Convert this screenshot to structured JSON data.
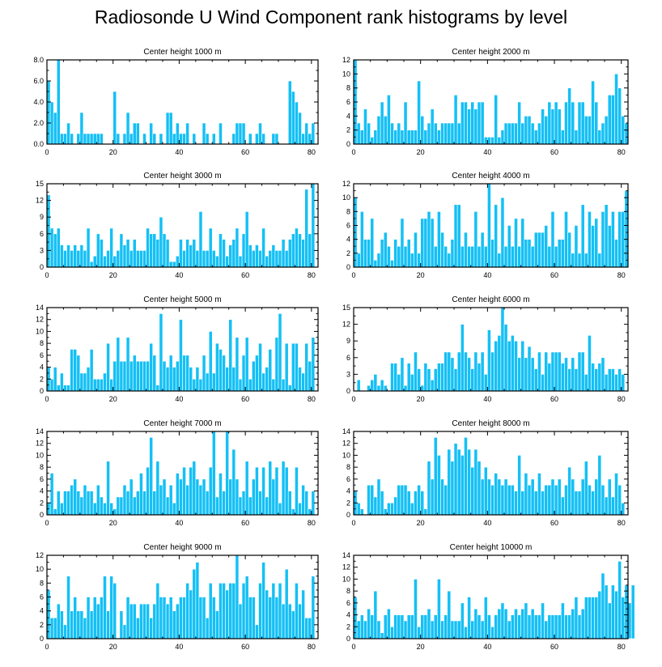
{
  "title": "Radiosonde U Wind Component rank histograms by level",
  "chart_data": [
    {
      "type": "bar",
      "title": "Center height 1000 m",
      "xlim": [
        0,
        82
      ],
      "ylim": [
        0,
        8
      ],
      "xticks": [
        0,
        20,
        40,
        60,
        80
      ],
      "yticks": [
        "0.0",
        "2.0",
        "4.0",
        "6.0",
        "8.0"
      ],
      "values": [
        6,
        4,
        3,
        8,
        1,
        1,
        2,
        1,
        0,
        1,
        3,
        1,
        1,
        1,
        1,
        1,
        1,
        0,
        0,
        0,
        5,
        1,
        0,
        1,
        3,
        1,
        2,
        2,
        0,
        1,
        0,
        2,
        1,
        0,
        1,
        0,
        3,
        3,
        1,
        2,
        1,
        1,
        2,
        0,
        1,
        0,
        0,
        2,
        1,
        0,
        1,
        0,
        2,
        0,
        0,
        0,
        1,
        2,
        2,
        2,
        0,
        1,
        0,
        1,
        2,
        1,
        0,
        0,
        1,
        1,
        0,
        0,
        0,
        6,
        5,
        4,
        3,
        1,
        2,
        1,
        2
      ]
    },
    {
      "type": "bar",
      "title": "Center height 2000 m",
      "xlim": [
        0,
        82
      ],
      "ylim": [
        0,
        12
      ],
      "xticks": [
        0,
        20,
        40,
        60,
        80
      ],
      "yticks": [
        "0",
        "2",
        "4",
        "6",
        "8",
        "10",
        "12"
      ],
      "values": [
        12,
        3,
        2,
        5,
        3,
        1,
        2,
        4,
        6,
        4,
        7,
        3,
        2,
        3,
        2,
        6,
        2,
        2,
        2,
        9,
        4,
        2,
        3,
        5,
        3,
        2,
        3,
        3,
        3,
        3,
        7,
        3,
        6,
        6,
        5,
        6,
        5,
        6,
        6,
        1,
        1,
        1,
        7,
        1,
        2,
        3,
        3,
        3,
        3,
        6,
        3,
        4,
        4,
        3,
        2,
        3,
        5,
        4,
        6,
        5,
        6,
        5,
        2,
        6,
        8,
        6,
        2,
        6,
        6,
        4,
        4,
        9,
        6,
        2,
        3,
        4,
        7,
        7,
        10,
        8,
        4,
        3
      ]
    },
    {
      "type": "bar",
      "title": "Center height 3000 m",
      "xlim": [
        0,
        82
      ],
      "ylim": [
        0,
        15
      ],
      "xticks": [
        0,
        20,
        40,
        60,
        80
      ],
      "yticks": [
        "0",
        "3",
        "6",
        "9",
        "12",
        "15"
      ],
      "values": [
        13,
        7,
        6,
        7,
        4,
        3,
        4,
        3,
        4,
        3,
        4,
        3,
        7,
        1,
        2,
        6,
        5,
        2,
        3,
        7,
        2,
        3,
        6,
        4,
        5,
        3,
        5,
        3,
        3,
        3,
        7,
        6,
        6,
        5,
        9,
        6,
        5,
        1,
        1,
        2,
        5,
        3,
        5,
        4,
        5,
        3,
        10,
        3,
        3,
        7,
        3,
        2,
        6,
        5,
        2,
        4,
        5,
        7,
        2,
        6,
        10,
        4,
        3,
        4,
        3,
        7,
        2,
        3,
        4,
        3,
        3,
        5,
        3,
        5,
        6,
        7,
        6,
        5,
        14,
        6,
        15
      ]
    },
    {
      "type": "bar",
      "title": "Center height 4000 m",
      "xlim": [
        0,
        82
      ],
      "ylim": [
        0,
        12
      ],
      "xticks": [
        0,
        20,
        40,
        60,
        80
      ],
      "yticks": [
        "0",
        "2",
        "4",
        "6",
        "8",
        "10",
        "12"
      ],
      "values": [
        10,
        2,
        8,
        4,
        4,
        7,
        1,
        2,
        4,
        5,
        3,
        1,
        4,
        3,
        7,
        3,
        4,
        2,
        5,
        2,
        7,
        7,
        8,
        7,
        3,
        8,
        5,
        3,
        2,
        4,
        9,
        9,
        3,
        5,
        3,
        3,
        8,
        3,
        5,
        3,
        12,
        4,
        9,
        2,
        10,
        3,
        6,
        3,
        7,
        3,
        7,
        4,
        4,
        3,
        5,
        5,
        5,
        6,
        3,
        8,
        3,
        4,
        4,
        8,
        5,
        2,
        6,
        2,
        9,
        2,
        8,
        6,
        7,
        2,
        8,
        9,
        6,
        8,
        4,
        8,
        8,
        11
      ]
    },
    {
      "type": "bar",
      "title": "Center height 5000 m",
      "xlim": [
        0,
        82
      ],
      "ylim": [
        0,
        14
      ],
      "xticks": [
        0,
        20,
        40,
        60,
        80
      ],
      "yticks": [
        "0",
        "2",
        "4",
        "6",
        "8",
        "10",
        "12",
        "14"
      ],
      "values": [
        4,
        2,
        4,
        1,
        3,
        1,
        1,
        7,
        7,
        6,
        3,
        3,
        4,
        7,
        2,
        2,
        2,
        3,
        8,
        2,
        5,
        9,
        5,
        5,
        9,
        5,
        6,
        5,
        5,
        5,
        5,
        8,
        6,
        1,
        13,
        5,
        4,
        6,
        4,
        5,
        12,
        6,
        6,
        4,
        2,
        4,
        2,
        6,
        3,
        10,
        3,
        8,
        7,
        6,
        4,
        12,
        4,
        9,
        2,
        6,
        9,
        2,
        5,
        6,
        8,
        3,
        4,
        7,
        2,
        9,
        13,
        2,
        8,
        1,
        8,
        8,
        4,
        3,
        8,
        5,
        9
      ]
    },
    {
      "type": "bar",
      "title": "Center height 6000 m",
      "xlim": [
        0,
        82
      ],
      "ylim": [
        0,
        15
      ],
      "xticks": [
        0,
        20,
        40,
        60,
        80
      ],
      "yticks": [
        "0",
        "3",
        "6",
        "9",
        "12",
        "15"
      ],
      "values": [
        0,
        2,
        0,
        0,
        1,
        2,
        3,
        1,
        2,
        1,
        0,
        5,
        5,
        3,
        6,
        1,
        5,
        3,
        7,
        4,
        1,
        5,
        4,
        2,
        4,
        5,
        5,
        7,
        7,
        6,
        4,
        7,
        12,
        7,
        6,
        4,
        7,
        5,
        7,
        3,
        11,
        7,
        9,
        10,
        15,
        12,
        9,
        10,
        9,
        6,
        9,
        6,
        8,
        6,
        4,
        7,
        3,
        7,
        5,
        7,
        7,
        7,
        5,
        6,
        4,
        6,
        4,
        7,
        7,
        3,
        10,
        5,
        4,
        5,
        6,
        3,
        4,
        4,
        3,
        4,
        3
      ]
    },
    {
      "type": "bar",
      "title": "Center height 7000 m",
      "xlim": [
        0,
        82
      ],
      "ylim": [
        0,
        14
      ],
      "xticks": [
        0,
        20,
        40,
        60,
        80
      ],
      "yticks": [
        "0",
        "2",
        "4",
        "6",
        "8",
        "10",
        "12",
        "14"
      ],
      "values": [
        2,
        7,
        1,
        4,
        2,
        4,
        4,
        5,
        6,
        4,
        3,
        5,
        4,
        4,
        2,
        5,
        3,
        2,
        9,
        2,
        1,
        3,
        3,
        5,
        4,
        6,
        3,
        4,
        7,
        4,
        8,
        13,
        4,
        9,
        5,
        6,
        3,
        5,
        2,
        7,
        6,
        8,
        5,
        8,
        9,
        6,
        5,
        6,
        4,
        8,
        14,
        3,
        7,
        4,
        14,
        6,
        11,
        6,
        3,
        4,
        9,
        3,
        6,
        8,
        4,
        8,
        3,
        9,
        6,
        8,
        2,
        9,
        8,
        4,
        1,
        8,
        2,
        5,
        4,
        1,
        4
      ]
    },
    {
      "type": "bar",
      "title": "Center height 8000 m",
      "xlim": [
        0,
        82
      ],
      "ylim": [
        0,
        14
      ],
      "xticks": [
        0,
        20,
        40,
        60,
        80
      ],
      "yticks": [
        "0",
        "2",
        "4",
        "6",
        "8",
        "10",
        "12",
        "14"
      ],
      "values": [
        4,
        2,
        1,
        0,
        5,
        5,
        3,
        6,
        4,
        1,
        2,
        2,
        3,
        5,
        5,
        5,
        4,
        2,
        4,
        5,
        4,
        1,
        9,
        6,
        13,
        10,
        6,
        5,
        11,
        9,
        12,
        11,
        10,
        13,
        11,
        8,
        11,
        9,
        6,
        8,
        6,
        5,
        7,
        6,
        5,
        6,
        5,
        5,
        4,
        10,
        4,
        7,
        5,
        6,
        4,
        7,
        4,
        5,
        5,
        6,
        5,
        6,
        3,
        5,
        8,
        6,
        4,
        4,
        6,
        9,
        5,
        4,
        6,
        10,
        5,
        3,
        6,
        3,
        7,
        5,
        2
      ]
    },
    {
      "type": "bar",
      "title": "Center height 9000 m",
      "xlim": [
        0,
        82
      ],
      "ylim": [
        0,
        12
      ],
      "xticks": [
        0,
        20,
        40,
        60,
        80
      ],
      "yticks": [
        "0",
        "2",
        "4",
        "6",
        "8",
        "10",
        "12"
      ],
      "values": [
        7,
        3,
        3,
        5,
        4,
        2,
        9,
        4,
        6,
        4,
        4,
        3,
        6,
        4,
        6,
        5,
        6,
        9,
        4,
        9,
        8,
        0,
        4,
        2,
        6,
        5,
        5,
        3,
        5,
        5,
        5,
        3,
        5,
        8,
        6,
        6,
        5,
        6,
        4,
        5,
        6,
        6,
        8,
        7,
        10,
        11,
        6,
        6,
        3,
        8,
        6,
        4,
        8,
        8,
        7,
        8,
        8,
        12,
        5,
        8,
        9,
        6,
        6,
        2,
        8,
        11,
        7,
        6,
        8,
        6,
        8,
        5,
        10,
        5,
        4,
        8,
        5,
        7,
        3,
        3,
        9
      ]
    },
    {
      "type": "bar",
      "title": "Center height 10000 m",
      "xlim": [
        0,
        82
      ],
      "ylim": [
        0,
        14
      ],
      "xticks": [
        0,
        20,
        40,
        60,
        80
      ],
      "yticks": [
        "0",
        "2",
        "4",
        "6",
        "8",
        "10",
        "12",
        "14"
      ],
      "values": [
        7,
        3,
        4,
        3,
        5,
        4,
        8,
        3,
        1,
        4,
        5,
        2,
        4,
        4,
        4,
        3,
        4,
        4,
        10,
        2,
        4,
        4,
        5,
        3,
        4,
        10,
        3,
        4,
        8,
        3,
        3,
        3,
        6,
        2,
        7,
        3,
        5,
        4,
        3,
        7,
        4,
        2,
        4,
        5,
        6,
        5,
        3,
        4,
        5,
        4,
        5,
        6,
        4,
        5,
        4,
        4,
        6,
        3,
        4,
        4,
        4,
        4,
        6,
        4,
        4,
        5,
        7,
        4,
        5,
        7,
        7,
        7,
        7,
        8,
        11,
        9,
        6,
        9,
        8,
        13,
        7,
        9,
        6,
        9
      ]
    }
  ]
}
